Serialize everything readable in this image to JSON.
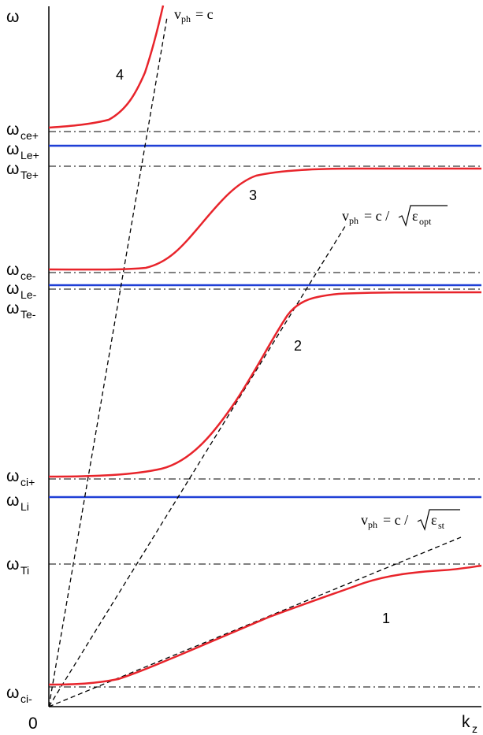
{
  "axes": {
    "y_symbol": "ω",
    "x_symbol": "k",
    "x_sub": "z",
    "origin": "0"
  },
  "frequency_levels": [
    {
      "sym": "ω",
      "sub": "ce+"
    },
    {
      "sym": "ω",
      "sub": "Le+"
    },
    {
      "sym": "ω",
      "sub": "Te+"
    },
    {
      "sym": "ω",
      "sub": "ce-"
    },
    {
      "sym": "ω",
      "sub": "Le-"
    },
    {
      "sym": "ω",
      "sub": "Te-"
    },
    {
      "sym": "ω",
      "sub": "ci+"
    },
    {
      "sym": "ω",
      "sub": "Li"
    },
    {
      "sym": "ω",
      "sub": "Ti"
    },
    {
      "sym": "ω",
      "sub": "ci-"
    }
  ],
  "branches": [
    "1",
    "2",
    "3",
    "4"
  ],
  "phase_lines": [
    {
      "v": "v",
      "v_sub": "ph",
      "rhs": "= c",
      "eps_sub": ""
    },
    {
      "v": "v",
      "v_sub": "ph",
      "rhs": "= c /",
      "eps": "ε",
      "eps_sub": "opt"
    },
    {
      "v": "v",
      "v_sub": "ph",
      "rhs": "= c /",
      "eps": "ε",
      "eps_sub": "st"
    }
  ],
  "colors": {
    "dispersion": "#e8242b",
    "longitudinal": "#1f3fd6",
    "guides": "#000000"
  }
}
